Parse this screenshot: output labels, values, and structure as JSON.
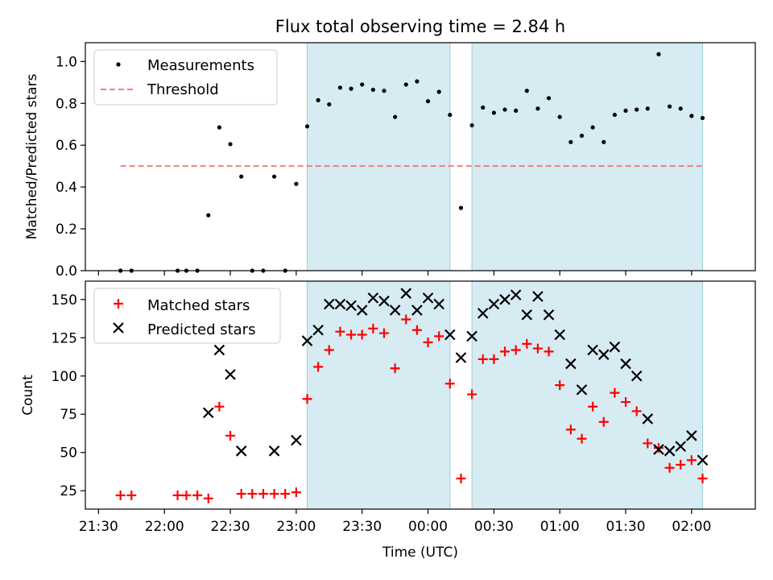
{
  "chart_data": [
    {
      "type": "scatter",
      "title": "Flux total observing time = 2.84 h",
      "xlabel": "",
      "ylabel": "Matched/Predicted stars",
      "xlim": [
        "21:24",
        "02:29"
      ],
      "ylim": [
        0,
        1.09
      ],
      "yticks": [
        "0.0",
        "0.2",
        "0.4",
        "0.6",
        "0.8",
        "1.0"
      ],
      "grid": false,
      "legend_position": "top-left",
      "shaded_intervals": [
        [
          "23:05",
          "00:10"
        ],
        [
          "00:20",
          "02:05"
        ]
      ],
      "series": [
        {
          "name": "Measurements",
          "marker": "dot",
          "color": "#000000",
          "x": [
            "21:40",
            "21:45",
            "22:06",
            "22:10",
            "22:15",
            "22:20",
            "22:25",
            "22:30",
            "22:35",
            "22:40",
            "22:45",
            "22:50",
            "22:55",
            "23:00",
            "23:05",
            "23:10",
            "23:15",
            "23:20",
            "23:25",
            "23:30",
            "23:35",
            "23:40",
            "23:45",
            "23:50",
            "23:55",
            "00:00",
            "00:05",
            "00:10",
            "00:15",
            "00:20",
            "00:25",
            "00:30",
            "00:35",
            "00:40",
            "00:45",
            "00:50",
            "00:55",
            "01:00",
            "01:05",
            "01:10",
            "01:15",
            "01:20",
            "01:25",
            "01:30",
            "01:35",
            "01:40",
            "01:45",
            "01:50",
            "01:55",
            "02:00",
            "02:05"
          ],
          "y": [
            0,
            0,
            0,
            0,
            0,
            0.265,
            0.685,
            0.605,
            0.45,
            0,
            0,
            0.45,
            0,
            0.415,
            0.69,
            0.815,
            0.795,
            0.875,
            0.87,
            0.89,
            0.865,
            0.86,
            0.735,
            0.89,
            0.905,
            0.81,
            0.855,
            0.745,
            0.3,
            0.695,
            0.78,
            0.755,
            0.77,
            0.765,
            0.86,
            0.775,
            0.825,
            0.735,
            0.615,
            0.645,
            0.685,
            0.615,
            0.745,
            0.765,
            0.77,
            0.775,
            1.035,
            0.785,
            0.775,
            0.74,
            0.73
          ]
        },
        {
          "name": "Threshold",
          "line_style": "dashed",
          "color": "#f08080",
          "x": [
            "21:40",
            "02:05"
          ],
          "y": [
            0.5,
            0.5
          ]
        }
      ]
    },
    {
      "type": "scatter",
      "title": "",
      "xlabel": "Time (UTC)",
      "ylabel": "Count",
      "xlim": [
        "21:24",
        "02:29"
      ],
      "ylim": [
        13,
        162
      ],
      "yticks": [
        "25",
        "50",
        "75",
        "100",
        "125",
        "150"
      ],
      "xticks": [
        "21:30",
        "22:00",
        "22:30",
        "23:00",
        "23:30",
        "00:00",
        "00:30",
        "01:00",
        "01:30",
        "02:00"
      ],
      "grid": false,
      "legend_position": "top-left",
      "shaded_intervals": [
        [
          "23:05",
          "00:10"
        ],
        [
          "00:20",
          "02:05"
        ]
      ],
      "series": [
        {
          "name": "Matched stars",
          "marker": "plus",
          "color": "#ff0000",
          "x": [
            "21:40",
            "21:45",
            "22:06",
            "22:10",
            "22:15",
            "22:20",
            "22:25",
            "22:30",
            "22:35",
            "22:40",
            "22:45",
            "22:50",
            "22:55",
            "23:00",
            "23:05",
            "23:10",
            "23:15",
            "23:20",
            "23:25",
            "23:30",
            "23:35",
            "23:40",
            "23:45",
            "23:50",
            "23:55",
            "00:00",
            "00:05",
            "00:10",
            "00:15",
            "00:20",
            "00:25",
            "00:30",
            "00:35",
            "00:40",
            "00:45",
            "00:50",
            "00:55",
            "01:00",
            "01:05",
            "01:10",
            "01:15",
            "01:20",
            "01:25",
            "01:30",
            "01:35",
            "01:40",
            "01:45",
            "01:50",
            "01:55",
            "02:00",
            "02:05"
          ],
          "y": [
            22,
            22,
            22,
            22,
            22,
            20,
            80,
            61,
            23,
            23,
            23,
            23,
            23,
            24,
            85,
            106,
            117,
            129,
            127,
            127,
            131,
            128,
            105,
            137,
            130,
            122,
            126,
            95,
            33,
            88,
            111,
            111,
            116,
            117,
            121,
            118,
            116,
            94,
            65,
            59,
            80,
            70,
            89,
            83,
            77,
            56,
            53,
            40,
            42,
            45,
            33
          ]
        },
        {
          "name": "Predicted stars",
          "marker": "x",
          "color": "#000000",
          "x": [
            "22:20",
            "22:25",
            "22:30",
            "22:35",
            "22:50",
            "23:00",
            "23:05",
            "23:10",
            "23:15",
            "23:20",
            "23:25",
            "23:30",
            "23:35",
            "23:40",
            "23:45",
            "23:50",
            "23:55",
            "00:00",
            "00:05",
            "00:10",
            "00:15",
            "00:20",
            "00:25",
            "00:30",
            "00:35",
            "00:40",
            "00:45",
            "00:50",
            "00:55",
            "01:00",
            "01:05",
            "01:10",
            "01:15",
            "01:20",
            "01:25",
            "01:30",
            "01:35",
            "01:40",
            "01:45",
            "01:50",
            "01:55",
            "02:00",
            "02:05"
          ],
          "y": [
            76,
            117,
            101,
            51,
            51,
            58,
            123,
            130,
            147,
            147,
            146,
            143,
            151,
            149,
            143,
            154,
            143,
            151,
            147,
            127,
            112,
            126,
            141,
            147,
            150,
            153,
            140,
            152,
            140,
            127,
            108,
            91,
            117,
            114,
            119,
            108,
            100,
            72,
            52,
            51,
            54,
            61,
            45
          ]
        }
      ]
    }
  ]
}
